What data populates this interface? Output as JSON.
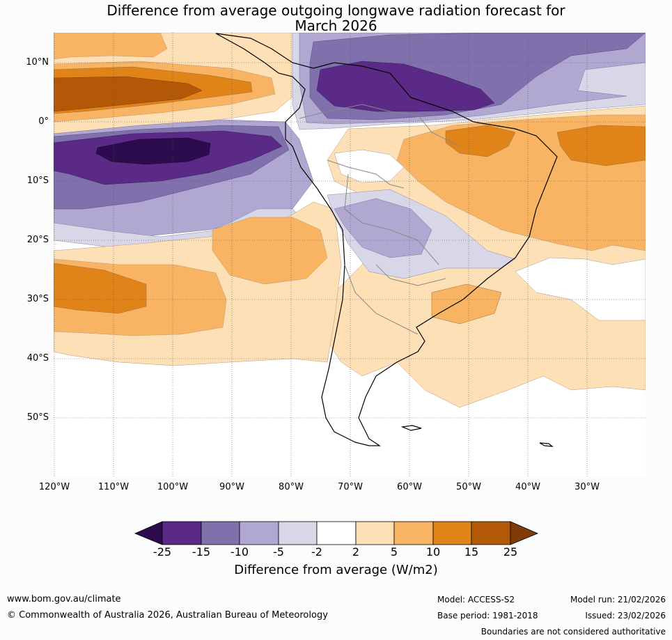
{
  "title": {
    "line1": "Difference from average outgoing longwave radiation forecast for",
    "line2": "March 2026"
  },
  "axes": {
    "lat_labels": [
      "10°N",
      "0°",
      "10°S",
      "20°S",
      "30°S",
      "40°S",
      "50°S"
    ],
    "lon_labels": [
      "120°W",
      "110°W",
      "100°W",
      "90°W",
      "80°W",
      "70°W",
      "60°W",
      "50°W",
      "40°W",
      "30°W"
    ]
  },
  "colorbar": {
    "ticks": [
      "-25",
      "-15",
      "-10",
      "-5",
      "-2",
      "2",
      "5",
      "10",
      "15",
      "25"
    ],
    "label": "Difference from average (W/m2)",
    "colors": [
      "#2d0b4f",
      "#5a2a86",
      "#8070ab",
      "#b0a8d0",
      "#d8d7e8",
      "#ffffff",
      "#fde0b6",
      "#f8b462",
      "#e08419",
      "#b35806",
      "#7f3b08"
    ]
  },
  "footer": {
    "website": "www.bom.gov.au/climate",
    "copyright": "© Commonwealth of Australia 2026, Australian Bureau of Meteorology",
    "model": "Model: ACCESS-S2",
    "base_period": "Base period: 1981-2018",
    "model_run": "Model run: 21/02/2026",
    "issued": "Issued: 23/02/2026",
    "disclaimer": "Boundaries are not considered authoritative"
  }
}
